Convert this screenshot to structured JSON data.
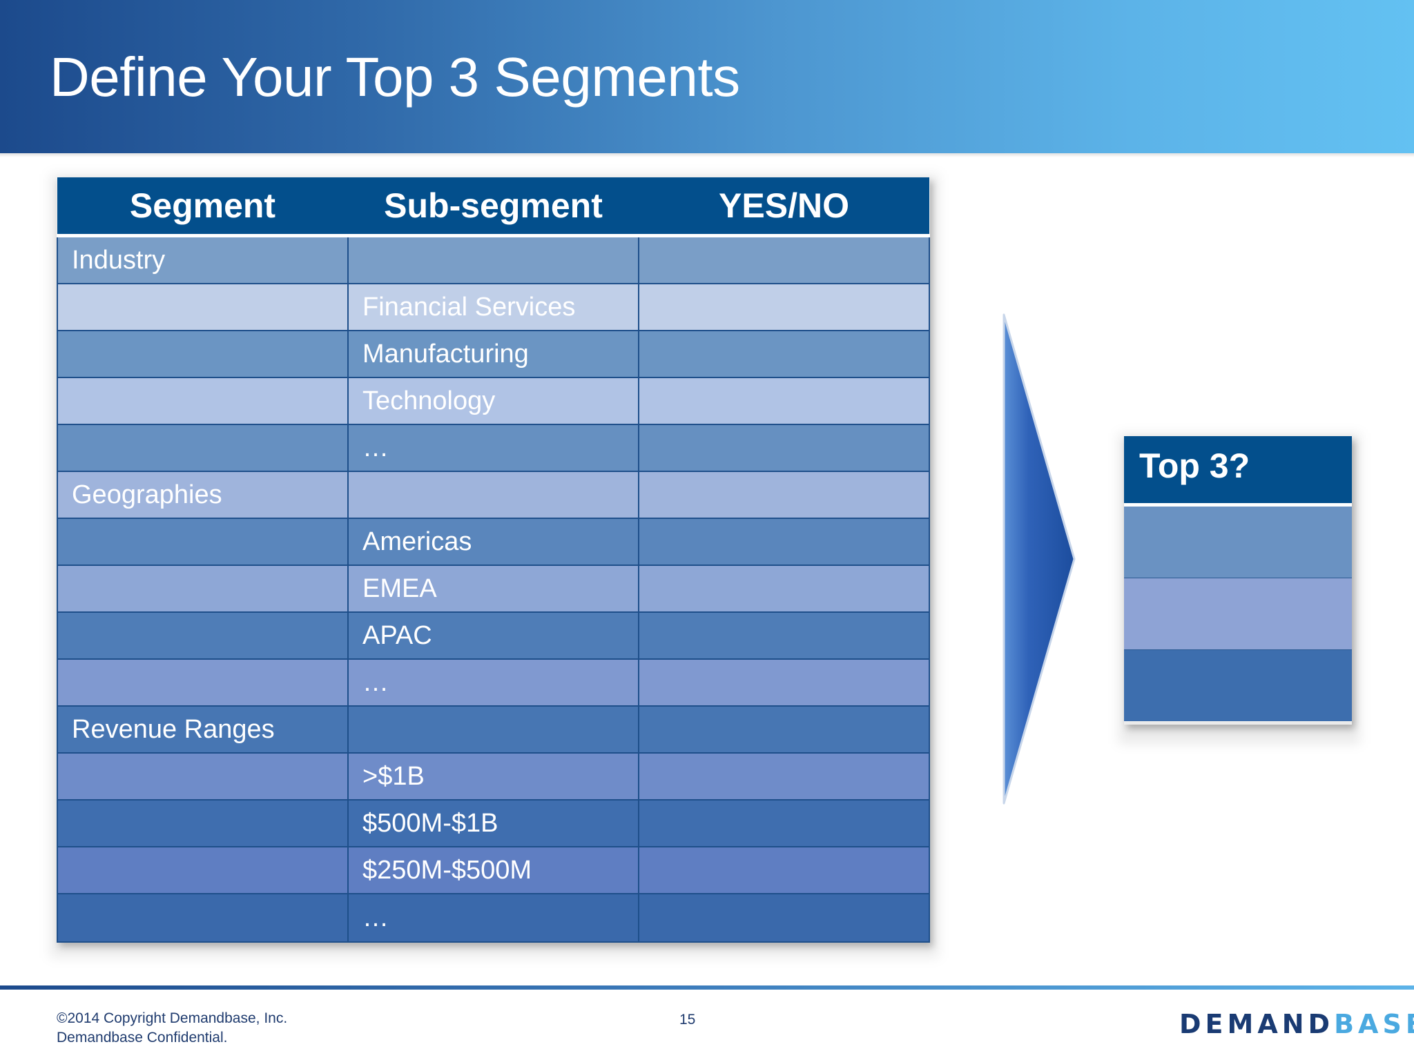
{
  "slide": {
    "title": "Define Your Top 3 Segments"
  },
  "table": {
    "headers": [
      "Segment",
      "Sub-segment",
      "YES/NO"
    ],
    "rows": [
      {
        "segment": "Industry",
        "sub": "",
        "yesno": ""
      },
      {
        "segment": "",
        "sub": "Financial Services",
        "yesno": ""
      },
      {
        "segment": "",
        "sub": "Manufacturing",
        "yesno": ""
      },
      {
        "segment": "",
        "sub": "Technology",
        "yesno": ""
      },
      {
        "segment": "",
        "sub": "…",
        "yesno": ""
      },
      {
        "segment": "Geographies",
        "sub": "",
        "yesno": ""
      },
      {
        "segment": "",
        "sub": "Americas",
        "yesno": ""
      },
      {
        "segment": "",
        "sub": "EMEA",
        "yesno": ""
      },
      {
        "segment": "",
        "sub": "APAC",
        "yesno": ""
      },
      {
        "segment": "",
        "sub": "…",
        "yesno": ""
      },
      {
        "segment": "Revenue Ranges",
        "sub": "",
        "yesno": ""
      },
      {
        "segment": "",
        "sub": ">$1B",
        "yesno": ""
      },
      {
        "segment": "",
        "sub": "$500M-$1B",
        "yesno": ""
      },
      {
        "segment": "",
        "sub": "$250M-$500M",
        "yesno": ""
      },
      {
        "segment": "",
        "sub": "…",
        "yesno": ""
      }
    ]
  },
  "top3": {
    "header": "Top 3?",
    "rows": [
      "",
      "",
      ""
    ]
  },
  "footer": {
    "copyright_line1": "©2014 Copyright Demandbase, Inc.",
    "copyright_line2": "Demandbase Confidential.",
    "page_number": "15",
    "logo_part1": "DEMAND",
    "logo_part2": "BASE"
  },
  "colors": {
    "header_dark": "#034f8c",
    "brand_dark": "#1a3b73",
    "brand_light": "#4aa9e0"
  },
  "icons": {
    "arrow": "right-arrow-icon"
  }
}
